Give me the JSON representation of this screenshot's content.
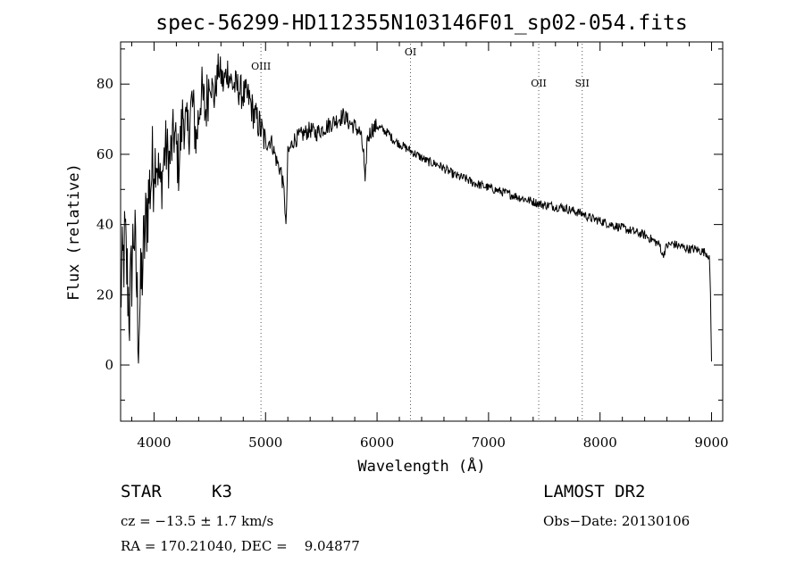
{
  "chart_data": {
    "type": "line",
    "title": "spec-56299-HD112355N103146F01_sp02-054.fits",
    "xlabel": "Wavelength (Å)",
    "ylabel": "Flux (relative)",
    "xlim": [
      3700,
      9100
    ],
    "ylim": [
      -16,
      92
    ],
    "x_ticks": [
      4000,
      5000,
      6000,
      7000,
      8000,
      9000
    ],
    "x_tick_labels": [
      "4000",
      "5000",
      "6000",
      "7000",
      "8000",
      "9000"
    ],
    "y_ticks": [
      0,
      20,
      40,
      60,
      80
    ],
    "y_tick_labels": [
      "0",
      "20",
      "40",
      "60",
      "80"
    ],
    "grid": false,
    "series": [
      {
        "x": [
          3700,
          3740,
          3780,
          3820,
          3860,
          3900,
          3940,
          3980,
          4020,
          4060,
          4100,
          4140,
          4180,
          4220,
          4260,
          4300,
          4340,
          4380,
          4420,
          4460,
          4500,
          4540,
          4580,
          4620,
          4660,
          4700,
          4750,
          4800,
          4850,
          4900,
          4950,
          5000,
          5050,
          5100,
          5140,
          5170,
          5183,
          5200,
          5250,
          5300,
          5350,
          5400,
          5450,
          5500,
          5550,
          5600,
          5650,
          5700,
          5750,
          5800,
          5850,
          5880,
          5893,
          5910,
          5950,
          6000,
          6050,
          6100,
          6150,
          6200,
          6250,
          6300,
          6350,
          6400,
          6450,
          6500,
          6550,
          6600,
          6650,
          6700,
          6750,
          6800,
          6850,
          6900,
          6950,
          7000,
          7050,
          7100,
          7150,
          7200,
          7250,
          7300,
          7350,
          7400,
          7450,
          7500,
          7550,
          7600,
          7650,
          7700,
          7750,
          7800,
          7850,
          7900,
          7950,
          8000,
          8050,
          8100,
          8150,
          8200,
          8250,
          8300,
          8350,
          8400,
          8450,
          8500,
          8540,
          8560,
          8600,
          8650,
          8700,
          8750,
          8800,
          8850,
          8900,
          8950,
          8980,
          8990,
          9000
        ],
        "y": [
          20,
          35,
          15,
          40,
          10,
          30,
          45,
          55,
          60,
          50,
          62,
          58,
          66,
          57,
          72,
          65,
          75,
          64,
          78,
          72,
          82,
          76,
          85,
          80,
          84,
          80,
          79,
          77,
          76,
          71,
          68,
          63,
          64,
          58,
          55,
          48,
          38,
          60,
          64,
          65,
          66,
          67,
          66,
          67,
          68,
          69,
          70,
          71,
          69,
          68,
          66,
          60,
          50,
          64,
          67,
          68,
          67,
          66,
          64,
          63,
          62,
          61,
          60,
          59,
          58,
          57.5,
          57,
          56,
          55,
          54,
          53.5,
          53,
          52,
          51.5,
          51,
          50.5,
          50,
          49.5,
          49,
          48.5,
          48,
          47.5,
          47,
          46.5,
          46,
          45.5,
          45.5,
          45,
          45,
          44.5,
          44,
          43.5,
          43,
          42,
          41.5,
          41,
          40.5,
          40,
          39.5,
          39,
          38.5,
          38,
          37.5,
          37,
          36,
          35,
          34,
          31,
          34,
          34.5,
          34,
          33.5,
          33,
          33,
          32.5,
          32,
          31,
          20,
          1
        ]
      }
    ],
    "annotations": [
      {
        "label": "OIII",
        "x": 4959
      },
      {
        "label": "OI",
        "x": 6300
      },
      {
        "label": "OII",
        "x": 7450
      },
      {
        "label": "SII",
        "x": 7840
      }
    ]
  },
  "info": {
    "class_label": "STAR",
    "subclass": "K3",
    "survey": "LAMOST DR2",
    "redshift": "cz = −13.5 ± 1.7 km/s",
    "obs_date": "Obs−Date: 20130106",
    "coords": "RA = 170.21040, DEC =    9.04877"
  }
}
